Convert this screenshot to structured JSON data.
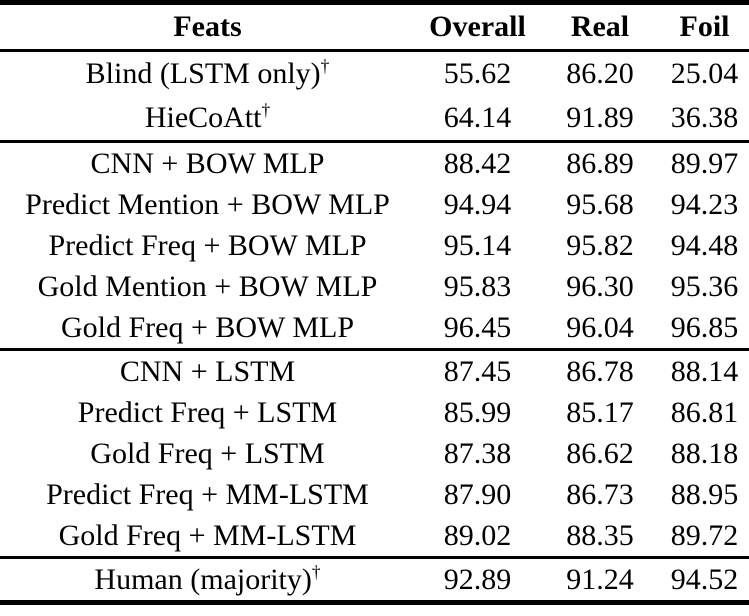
{
  "colors": {
    "background": "#ffffff",
    "text": "#000000",
    "rule": "#000000"
  },
  "table": {
    "columns": [
      "Feats",
      "Overall",
      "Real",
      "Foil"
    ],
    "groups": [
      {
        "rows": [
          {
            "feats": "Blind (LSTM only)",
            "dagger": "†",
            "overall": "55.62",
            "real": "86.20",
            "foil": "25.04"
          },
          {
            "feats": "HieCoAtt",
            "dagger": "†",
            "overall": "64.14",
            "real": "91.89",
            "foil": "36.38"
          }
        ]
      },
      {
        "rows": [
          {
            "feats": "CNN + BOW MLP",
            "dagger": "",
            "overall": "88.42",
            "real": "86.89",
            "foil": "89.97"
          },
          {
            "feats": "Predict Mention + BOW MLP",
            "dagger": "",
            "overall": "94.94",
            "real": "95.68",
            "foil": "94.23"
          },
          {
            "feats": "Predict Freq + BOW MLP",
            "dagger": "",
            "overall": "95.14",
            "real": "95.82",
            "foil": "94.48"
          },
          {
            "feats": "Gold Mention + BOW MLP",
            "dagger": "",
            "overall": "95.83",
            "real": "96.30",
            "foil": "95.36"
          },
          {
            "feats": "Gold Freq + BOW MLP",
            "dagger": "",
            "overall": "96.45",
            "real": "96.04",
            "foil": "96.85"
          }
        ]
      },
      {
        "rows": [
          {
            "feats": "CNN + LSTM",
            "dagger": "",
            "overall": "87.45",
            "real": "86.78",
            "foil": "88.14"
          },
          {
            "feats": "Predict Freq + LSTM",
            "dagger": "",
            "overall": "85.99",
            "real": "85.17",
            "foil": "86.81"
          },
          {
            "feats": "Gold Freq + LSTM",
            "dagger": "",
            "overall": "87.38",
            "real": "86.62",
            "foil": "88.18"
          },
          {
            "feats": "Predict Freq + MM-LSTM",
            "dagger": "",
            "overall": "87.90",
            "real": "86.73",
            "foil": "88.95"
          },
          {
            "feats": "Gold Freq + MM-LSTM",
            "dagger": "",
            "overall": "89.02",
            "real": "88.35",
            "foil": "89.72"
          }
        ]
      },
      {
        "rows": [
          {
            "feats": "Human (majority)",
            "dagger": "†",
            "overall": "92.89",
            "real": "91.24",
            "foil": "94.52"
          }
        ]
      }
    ]
  }
}
